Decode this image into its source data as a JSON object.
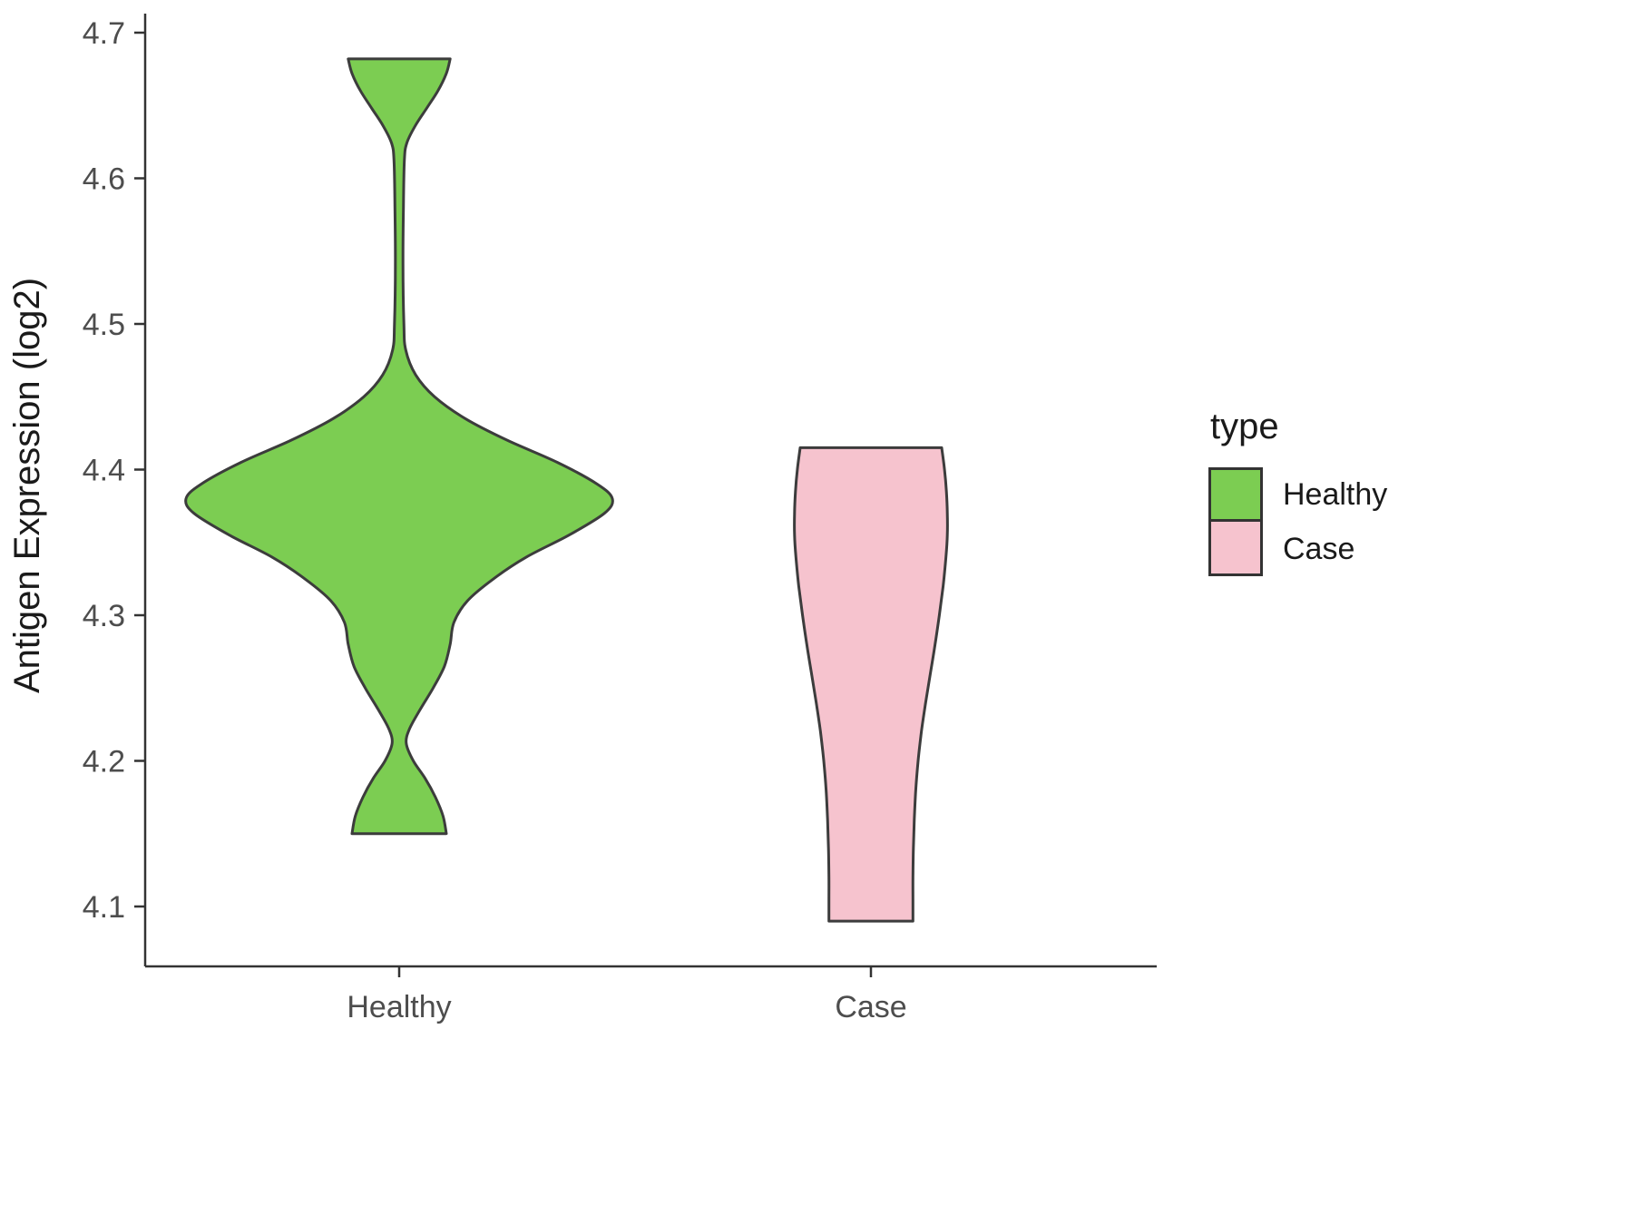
{
  "chart_data": {
    "type": "violin",
    "title": "",
    "xlabel": "",
    "ylabel": "Antigen Expression (log2)",
    "categories": [
      "Healthy",
      "Case"
    ],
    "y_ticks": [
      "4.1",
      "4.2",
      "4.3",
      "4.4",
      "4.5",
      "4.6",
      "4.7"
    ],
    "y_tick_values": [
      4.1,
      4.2,
      4.3,
      4.4,
      4.5,
      4.6,
      4.7
    ],
    "ylim": [
      4.06,
      4.71
    ],
    "grid": "off",
    "axis_color": "#333333",
    "tick_label_color": "#4d4d4d",
    "outline_color": "#3c3c3c",
    "legend": {
      "title": "type",
      "position": "right",
      "entries": [
        {
          "label": "Healthy",
          "color": "#7ccd52"
        },
        {
          "label": "Case",
          "color": "#f6c3ce"
        }
      ]
    },
    "series": [
      {
        "name": "Healthy",
        "fill": "#7ccd52",
        "y_range": [
          4.15,
          4.682
        ],
        "profile": [
          [
            4.682,
            0.108
          ],
          [
            4.672,
            0.1
          ],
          [
            4.66,
            0.082
          ],
          [
            4.648,
            0.058
          ],
          [
            4.636,
            0.034
          ],
          [
            4.624,
            0.016
          ],
          [
            4.612,
            0.011
          ],
          [
            4.58,
            0.009
          ],
          [
            4.54,
            0.008
          ],
          [
            4.5,
            0.01
          ],
          [
            4.482,
            0.014
          ],
          [
            4.465,
            0.035
          ],
          [
            4.45,
            0.075
          ],
          [
            4.435,
            0.14
          ],
          [
            4.42,
            0.23
          ],
          [
            4.405,
            0.335
          ],
          [
            4.39,
            0.42
          ],
          [
            4.38,
            0.452
          ],
          [
            4.37,
            0.435
          ],
          [
            4.355,
            0.36
          ],
          [
            4.34,
            0.27
          ],
          [
            4.325,
            0.2
          ],
          [
            4.31,
            0.145
          ],
          [
            4.295,
            0.116
          ],
          [
            4.28,
            0.108
          ],
          [
            4.265,
            0.096
          ],
          [
            4.25,
            0.072
          ],
          [
            4.235,
            0.044
          ],
          [
            4.222,
            0.022
          ],
          [
            4.212,
            0.015
          ],
          [
            4.2,
            0.03
          ],
          [
            4.188,
            0.055
          ],
          [
            4.175,
            0.077
          ],
          [
            4.162,
            0.093
          ],
          [
            4.15,
            0.1
          ]
        ]
      },
      {
        "name": "Case",
        "fill": "#f6c3ce",
        "y_range": [
          4.09,
          4.415
        ],
        "profile": [
          [
            4.415,
            0.15
          ],
          [
            4.4,
            0.156
          ],
          [
            4.385,
            0.16
          ],
          [
            4.37,
            0.162
          ],
          [
            4.355,
            0.162
          ],
          [
            4.34,
            0.159
          ],
          [
            4.32,
            0.153
          ],
          [
            4.3,
            0.145
          ],
          [
            4.28,
            0.136
          ],
          [
            4.26,
            0.126
          ],
          [
            4.24,
            0.116
          ],
          [
            4.22,
            0.107
          ],
          [
            4.2,
            0.1
          ],
          [
            4.18,
            0.095
          ],
          [
            4.16,
            0.092
          ],
          [
            4.14,
            0.09
          ],
          [
            4.12,
            0.089
          ],
          [
            4.105,
            0.089
          ],
          [
            4.09,
            0.089
          ]
        ]
      }
    ]
  }
}
